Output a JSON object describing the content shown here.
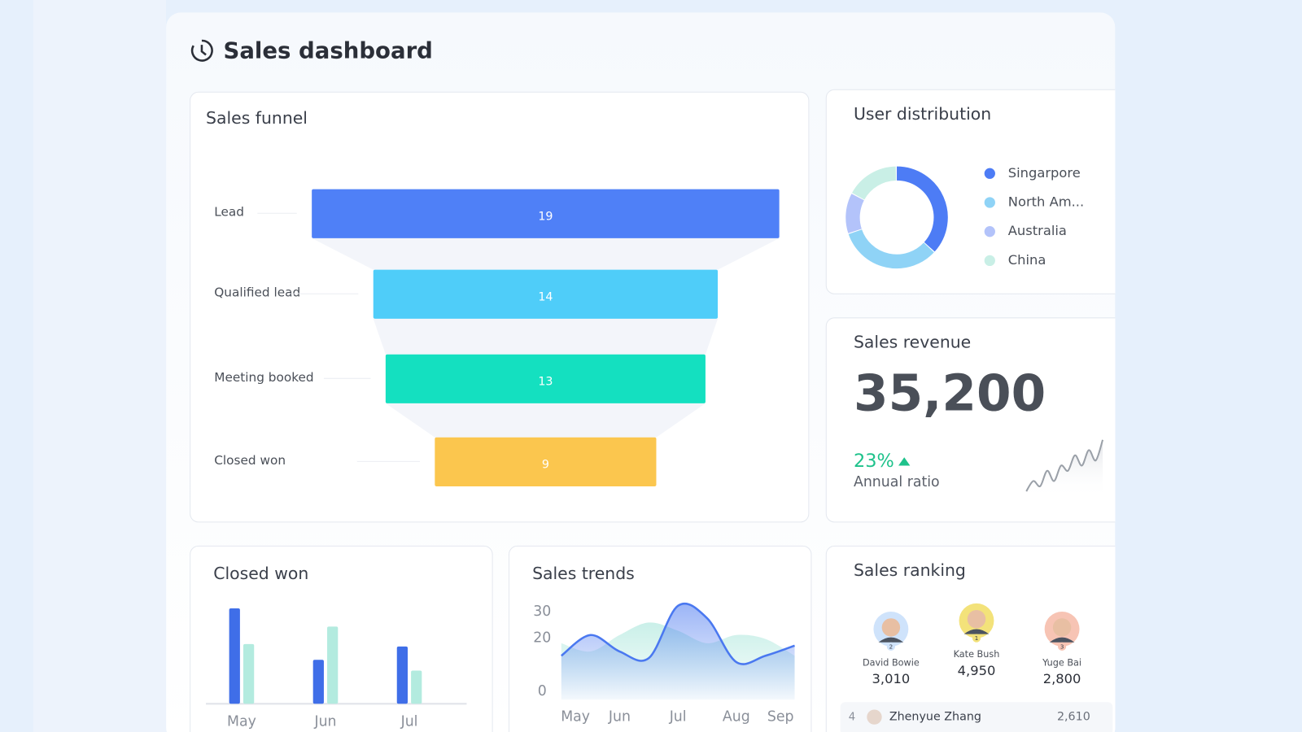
{
  "header": {
    "title": "Sales dashboard"
  },
  "funnel": {
    "type": "funnel",
    "title": "Sales funnel",
    "stages": [
      {
        "label": "Lead",
        "value": 19,
        "color": "#4f80f7"
      },
      {
        "label": "Qualified lead",
        "value": 14,
        "color": "#4fcdf9"
      },
      {
        "label": "Meeting booked",
        "value": 13,
        "color": "#14e0c0"
      },
      {
        "label": "Closed won",
        "value": 9,
        "color": "#fbc64e"
      }
    ]
  },
  "user_distribution": {
    "type": "donut",
    "title": "User distribution",
    "segments": [
      {
        "name": "Singarpore",
        "value": 37,
        "color": "#4d7cf5"
      },
      {
        "name": "North Am...",
        "value": 33,
        "color": "#8fd3f6"
      },
      {
        "name": "Australia",
        "value": 13,
        "color": "#b3c3fa"
      },
      {
        "name": "China",
        "value": 17,
        "color": "#c9efe6"
      }
    ]
  },
  "sales_revenue": {
    "title": "Sales revenue",
    "value": "35,200",
    "ratio": "23%",
    "ratio_label": "Annual ratio",
    "trend": {
      "type": "line",
      "color": "#9aa0a8",
      "values": [
        2,
        4,
        3,
        6,
        4,
        7,
        6,
        9,
        7,
        10,
        8,
        12
      ]
    }
  },
  "closed_won": {
    "type": "bar",
    "title": "Closed won",
    "categories": [
      "May",
      "Jun",
      "Jul"
    ],
    "ylim": [
      0,
      120
    ],
    "series": [
      {
        "color": "#3f6ee8",
        "values": [
          115,
          53,
          69
        ]
      },
      {
        "color": "#b3ebdf",
        "values": [
          72,
          93,
          40
        ]
      }
    ]
  },
  "sales_trends": {
    "type": "line",
    "title": "Sales trends",
    "categories": [
      "May",
      null,
      "Jun",
      null,
      "Jul",
      null,
      "Aug",
      null,
      "Sep"
    ],
    "ylim": [
      0,
      35
    ],
    "yticks": [
      0,
      20,
      30
    ],
    "series": [
      {
        "color": "#9ee3d6",
        "area": true,
        "values": [
          18.1,
          15,
          21.2,
          25.9,
          22.8,
          18.1,
          21.2,
          19.7,
          13.4
        ]
      },
      {
        "color": "#4a78f0",
        "area": true,
        "values": [
          13.4,
          21.2,
          15,
          12.5,
          32.2,
          27.5,
          11,
          13.4,
          17.2
        ]
      }
    ]
  },
  "sales_ranking": {
    "title": "Sales ranking",
    "podium": [
      {
        "rank": 2,
        "name": "David Bowie",
        "score": "3,010"
      },
      {
        "rank": 1,
        "name": "Kate Bush",
        "score": "4,950"
      },
      {
        "rank": 3,
        "name": "Yuge Bai",
        "score": "2,800"
      }
    ],
    "list": [
      {
        "rank": 4,
        "name": "Zhenyue Zhang",
        "score": "2,610"
      }
    ]
  }
}
